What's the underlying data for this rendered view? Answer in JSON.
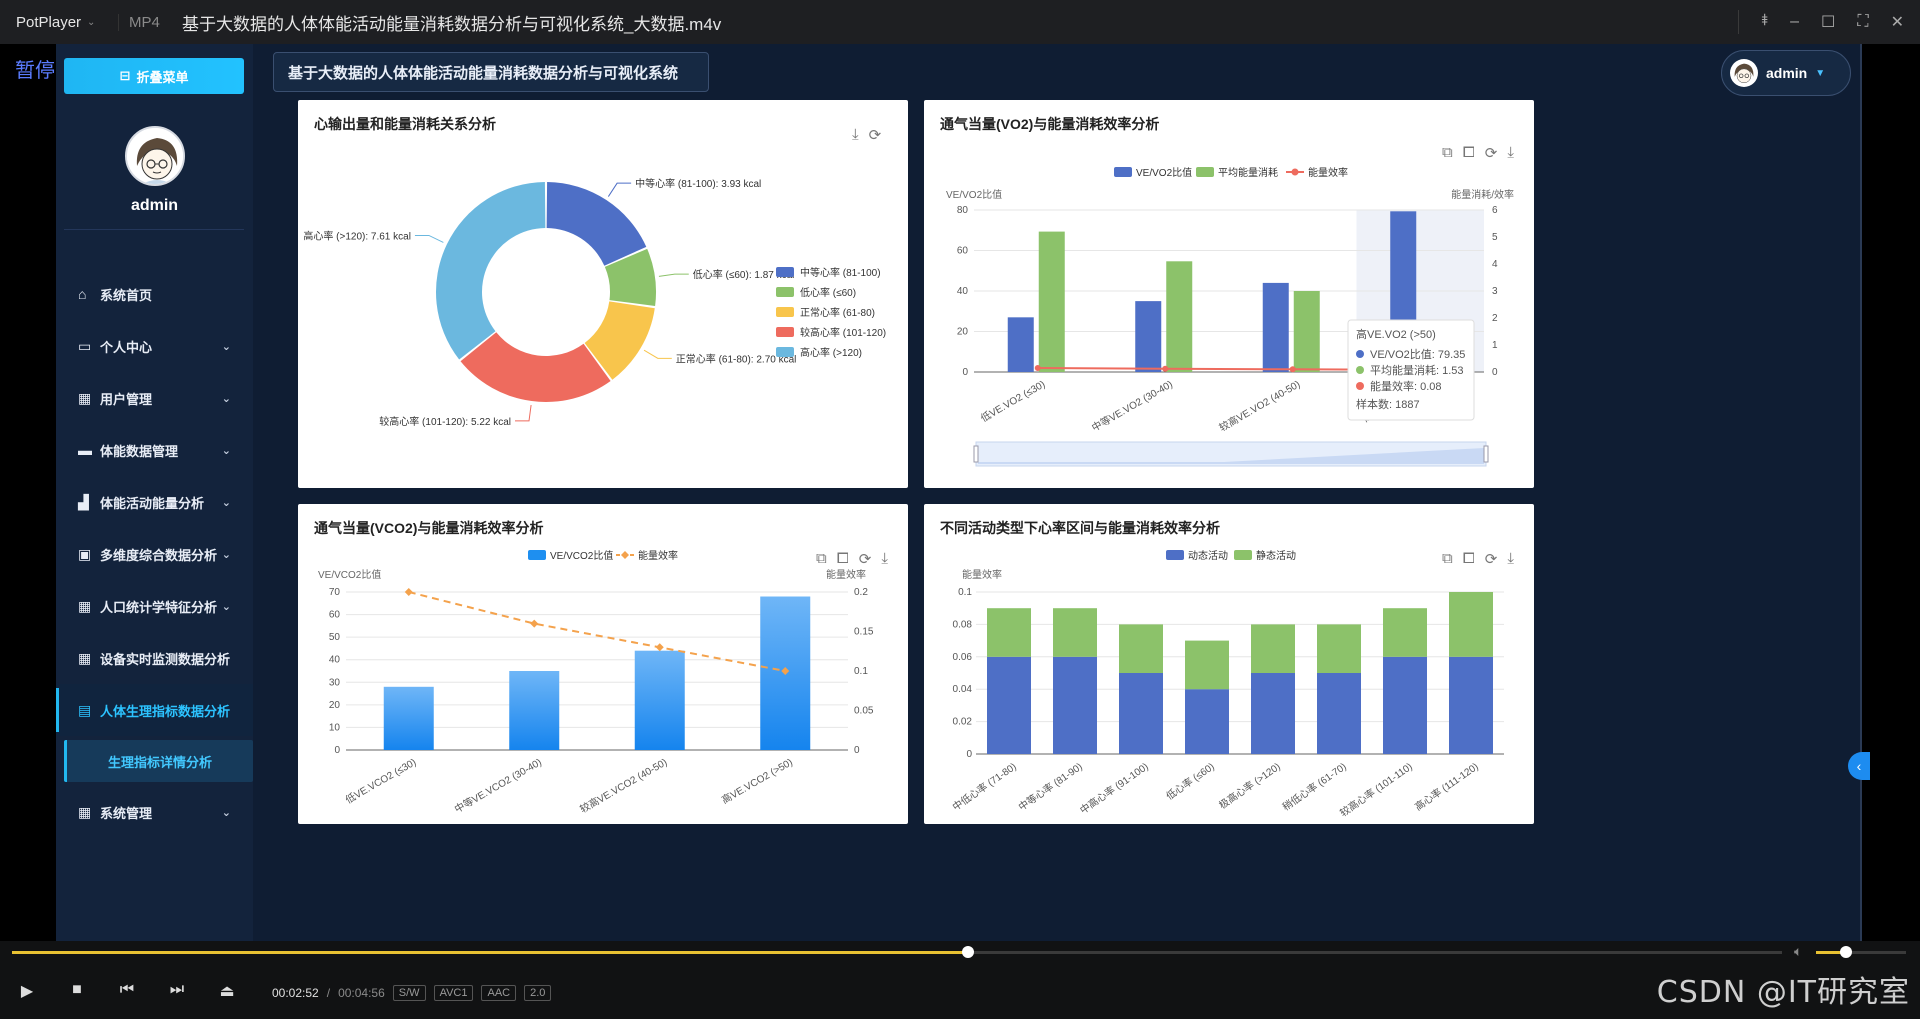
{
  "player": {
    "brand": "PotPlayer",
    "format": "MP4",
    "filename": "基于大数据的人体体能活动能量消耗数据分析与可视化系统_大数据.m4v",
    "pause_label": "暂停",
    "current_time": "00:02:52",
    "separator": "/",
    "total_time": "00:04:56",
    "progress_fraction": 0.54,
    "volume_fraction": 0.3,
    "tags": [
      "S/W",
      "AVC1",
      "AAC",
      "2.0"
    ],
    "watermark": "CSDN @IT研究室"
  },
  "app": {
    "header_title": "基于大数据的人体体能活动能量消耗数据分析与可视化系统",
    "collapse_label": "折叠菜单",
    "username": "admin",
    "user_menu_name": "admin",
    "menu": [
      {
        "label": "系统首页",
        "icon": "home-icon",
        "has_chevron": false
      },
      {
        "label": "个人中心",
        "icon": "window-icon",
        "has_chevron": true
      },
      {
        "label": "用户管理",
        "icon": "grid-icon",
        "has_chevron": true
      },
      {
        "label": "体能数据管理",
        "icon": "ticket-icon",
        "has_chevron": true
      },
      {
        "label": "体能活动能量分析",
        "icon": "thumb-icon",
        "has_chevron": true
      },
      {
        "label": "多维度综合数据分析",
        "icon": "briefcase-icon",
        "has_chevron": true
      },
      {
        "label": "人口统计学特征分析",
        "icon": "grid-icon",
        "has_chevron": true
      },
      {
        "label": "设备实时监测数据分析",
        "icon": "grid-icon",
        "has_chevron": false
      },
      {
        "label": "人体生理指标数据分析",
        "icon": "clipboard-icon",
        "has_chevron": false,
        "active": true
      },
      {
        "label": "系统管理",
        "icon": "grid-icon",
        "has_chevron": true
      }
    ],
    "submenu_active": "生理指标详情分析"
  },
  "chart_data": [
    {
      "type": "pie",
      "title": "心输出量和能量消耗关系分析",
      "slices": [
        {
          "name": "中等心率 (81-100)",
          "value": 3.93,
          "label": "中等心率 (81-100): 3.93 kcal",
          "color": "#4e6fc6"
        },
        {
          "name": "低心率 (≤60)",
          "value": 1.87,
          "label": "低心率 (≤60): 1.87 kcal",
          "color": "#8cc26a"
        },
        {
          "name": "正常心率 (61-80)",
          "value": 2.7,
          "label": "正常心率 (61-80): 2.70 kcal",
          "color": "#f8c54c"
        },
        {
          "name": "较高心率 (101-120)",
          "value": 5.22,
          "label": "较高心率 (101-120): 5.22 kcal",
          "color": "#ee6b5e"
        },
        {
          "name": "高心率 (>120)",
          "value": 7.61,
          "label": "高心率 (>120): 7.61 kcal",
          "color": "#6bb8df"
        }
      ],
      "legend": [
        "中等心率 (81-100)",
        "低心率 (≤60)",
        "正常心率 (61-80)",
        "较高心率 (101-120)",
        "高心率 (>120)"
      ]
    },
    {
      "type": "bar",
      "title": "通气当量(VO2)与能量消耗效率分析",
      "categories": [
        "低VE.VO2 (≤30)",
        "中等VE.VO2 (30-40)",
        "较高VE.VO2 (40-50)",
        "高VE.VO2 (>50)"
      ],
      "series": [
        {
          "name": "VE/VO2比值",
          "type": "bar",
          "axis": "left",
          "values": [
            27,
            35,
            44,
            79.35
          ],
          "color": "#4e6fc6"
        },
        {
          "name": "平均能量消耗",
          "type": "bar",
          "axis": "right",
          "values": [
            5.2,
            4.1,
            3.0,
            1.53
          ],
          "color": "#8cc26a"
        },
        {
          "name": "能量效率",
          "type": "line",
          "axis": "right",
          "values": [
            0.15,
            0.12,
            0.1,
            0.08
          ],
          "color": "#ee6b5e"
        }
      ],
      "ylabel": "VE/VO2比值",
      "ylabel_right": "能量消耗/效率",
      "ylim": [
        0,
        80
      ],
      "yticks": [
        0,
        20,
        40,
        60,
        80
      ],
      "ylim_right": [
        0,
        6
      ],
      "yticks_right": [
        0,
        1,
        2,
        3,
        4,
        5,
        6
      ],
      "tooltip": {
        "title": "高VE.VO2 (>50)",
        "rows": [
          "VE/VO2比值: 79.35",
          "平均能量消耗: 1.53",
          "能量效率: 0.08"
        ],
        "footer": "样本数: 1887"
      }
    },
    {
      "type": "bar",
      "title": "通气当量(VCO2)与能量消耗效率分析",
      "categories": [
        "低VE.VCO2 (≤30)",
        "中等VE.VCO2 (30-40)",
        "较高VE.VCO2 (40-50)",
        "高VE.VCO2 (>50)"
      ],
      "series": [
        {
          "name": "VE/VCO2比值",
          "type": "bar",
          "axis": "left",
          "values": [
            28,
            35,
            44,
            68
          ],
          "color": "#1e8ff0"
        },
        {
          "name": "能量效率",
          "type": "line",
          "axis": "right",
          "values": [
            0.2,
            0.16,
            0.13,
            0.1
          ],
          "color": "#f4a24c"
        }
      ],
      "ylabel": "VE/VCO2比值",
      "ylabel_right": "能量效率",
      "ylim": [
        0,
        70
      ],
      "yticks": [
        0,
        10,
        20,
        30,
        40,
        50,
        60,
        70
      ],
      "ylim_right": [
        0,
        0.2
      ],
      "yticks_right": [
        "0",
        "0.05",
        "0.1",
        "0.15",
        "0.2"
      ]
    },
    {
      "type": "bar",
      "stacked": true,
      "title": "不同活动类型下心率区间与能量消耗效率分析",
      "categories": [
        "中低心率 (71-80)",
        "中等心率 (81-90)",
        "中高心率 (91-100)",
        "低心率 (≤60)",
        "极高心率 (>120)",
        "稍低心率 (61-70)",
        "较高心率 (101-110)",
        "高心率 (111-120)"
      ],
      "series": [
        {
          "name": "动态活动",
          "values": [
            0.06,
            0.06,
            0.05,
            0.04,
            0.05,
            0.05,
            0.06,
            0.06
          ],
          "color": "#4e6fc6"
        },
        {
          "name": "静态活动",
          "values": [
            0.03,
            0.03,
            0.03,
            0.03,
            0.03,
            0.03,
            0.03,
            0.04
          ],
          "color": "#8cc26a"
        }
      ],
      "ylabel": "能量效率",
      "ylim": [
        0,
        0.1
      ],
      "yticks": [
        "0",
        "0.02",
        "0.04",
        "0.06",
        "0.08",
        "0.1"
      ]
    }
  ]
}
